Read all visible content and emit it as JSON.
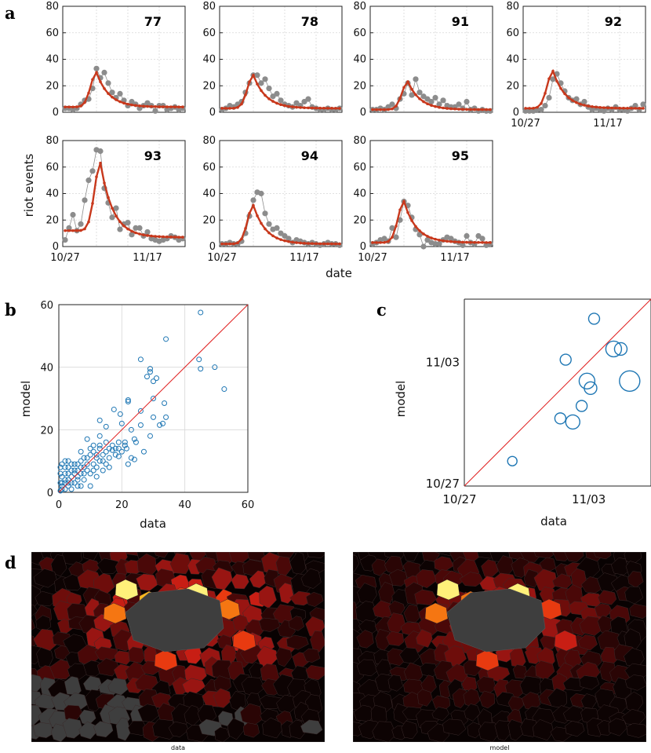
{
  "colors": {
    "model": "#c8381c",
    "data_point": "#8c8c8c",
    "scatter": "#1f77b4",
    "identity": "#e02020",
    "grid": "#d8d8d8",
    "masked": "#3e3e3e"
  },
  "chart_data": [
    {
      "panel": "a",
      "type": "line",
      "ylabel": "riot events",
      "xlabel": "date",
      "ylim": [
        0,
        80
      ],
      "yticks": [
        0,
        20,
        40,
        60,
        80
      ],
      "xtick_labels": [
        "10/27",
        "11/17"
      ],
      "x_unit": "day index from 10/27 (0..30)",
      "grid": true,
      "subplots": [
        {
          "label": "77",
          "peak_day": 8,
          "peak": 30,
          "base": 4,
          "tail": 4,
          "data": [
            3,
            3,
            2,
            3,
            6,
            9,
            10,
            18,
            33,
            26,
            30,
            22,
            15,
            11,
            14,
            9,
            5,
            8,
            6,
            3,
            5,
            7,
            5,
            1,
            5,
            5,
            2,
            3,
            4,
            2,
            3
          ]
        },
        {
          "label": "78",
          "peak_day": 8,
          "peak": 28,
          "base": 3,
          "tail": 3,
          "data": [
            2,
            3,
            5,
            4,
            6,
            8,
            15,
            22,
            28,
            28,
            22,
            25,
            18,
            12,
            14,
            9,
            6,
            5,
            4,
            7,
            5,
            8,
            10,
            4,
            3,
            2,
            2,
            3,
            2,
            2,
            3
          ]
        },
        {
          "label": "91",
          "peak_day": 9,
          "peak": 23,
          "base": 2,
          "tail": 2,
          "data": [
            2,
            2,
            3,
            2,
            4,
            6,
            3,
            10,
            14,
            22,
            13,
            25,
            15,
            12,
            10,
            8,
            11,
            6,
            9,
            5,
            4,
            4,
            6,
            3,
            8,
            2,
            3,
            1,
            2,
            1,
            1
          ]
        },
        {
          "label": "92",
          "peak_day": 7,
          "peak": 31,
          "base": 3,
          "tail": 3,
          "data": [
            1,
            1,
            1,
            2,
            2,
            5,
            11,
            25,
            29,
            22,
            16,
            11,
            9,
            10,
            6,
            8,
            4,
            2,
            3,
            2,
            1,
            3,
            2,
            4,
            2,
            2,
            1,
            3,
            5,
            2,
            6
          ]
        },
        {
          "label": "93",
          "peak_day": 9,
          "peak": 63,
          "base": 12,
          "tail": 7,
          "data": [
            5,
            14,
            24,
            12,
            17,
            35,
            50,
            57,
            73,
            72,
            44,
            33,
            22,
            29,
            13,
            17,
            18,
            9,
            14,
            14,
            8,
            11,
            6,
            5,
            4,
            5,
            6,
            8,
            7,
            5,
            6
          ]
        },
        {
          "label": "94",
          "peak_day": 8,
          "peak": 31,
          "base": 2,
          "tail": 2,
          "data": [
            2,
            2,
            3,
            2,
            2,
            4,
            10,
            23,
            35,
            41,
            40,
            25,
            17,
            13,
            14,
            10,
            8,
            6,
            3,
            5,
            4,
            3,
            2,
            3,
            2,
            1,
            2,
            3,
            2,
            2,
            1
          ]
        },
        {
          "label": "95",
          "peak_day": 8,
          "peak": 34,
          "base": 3,
          "tail": 3,
          "data": [
            2,
            3,
            5,
            6,
            4,
            14,
            7,
            20,
            34,
            31,
            22,
            13,
            9,
            0,
            5,
            3,
            2,
            2,
            5,
            7,
            6,
            4,
            3,
            1,
            8,
            3,
            2,
            8,
            6,
            1,
            2
          ]
        }
      ]
    },
    {
      "panel": "b",
      "type": "scatter",
      "xlabel": "data",
      "ylabel": "model",
      "xlim": [
        0,
        60
      ],
      "ylim": [
        0,
        60
      ],
      "xticks": [
        0,
        20,
        40,
        60
      ],
      "yticks": [
        0,
        20,
        40,
        60
      ],
      "reference_line": "y = x",
      "points": [
        [
          45,
          57.5
        ],
        [
          34,
          49
        ],
        [
          26,
          42.5
        ],
        [
          29,
          39.5
        ],
        [
          29,
          38.5
        ],
        [
          28,
          37
        ],
        [
          31,
          36.5
        ],
        [
          30,
          35.5
        ],
        [
          44.5,
          42.5
        ],
        [
          49.5,
          40
        ],
        [
          45,
          39.5
        ],
        [
          52.5,
          33
        ],
        [
          30,
          30
        ],
        [
          22,
          29.5
        ],
        [
          22,
          29
        ],
        [
          33.5,
          28.5
        ],
        [
          19.5,
          25
        ],
        [
          17.5,
          26.5
        ],
        [
          26,
          26
        ],
        [
          30,
          24
        ],
        [
          34,
          24
        ],
        [
          33,
          22
        ],
        [
          32,
          21.5
        ],
        [
          26,
          21.5
        ],
        [
          13,
          23
        ],
        [
          15,
          21
        ],
        [
          20,
          22
        ],
        [
          23,
          20
        ],
        [
          29,
          18
        ],
        [
          13,
          18
        ],
        [
          9,
          17
        ],
        [
          21,
          16
        ],
        [
          24,
          17
        ],
        [
          24.5,
          16
        ],
        [
          21.5,
          14
        ],
        [
          15,
          13
        ],
        [
          18,
          12
        ],
        [
          23,
          11
        ],
        [
          22,
          9
        ],
        [
          24,
          10.5
        ],
        [
          27,
          13
        ],
        [
          12,
          12
        ],
        [
          14,
          10
        ],
        [
          10,
          14
        ],
        [
          8,
          11
        ],
        [
          16,
          8
        ],
        [
          11,
          7
        ],
        [
          9,
          9
        ],
        [
          7,
          13
        ],
        [
          19,
          11.5
        ],
        [
          17,
          13.5
        ],
        [
          13,
          15
        ],
        [
          11,
          15
        ],
        [
          12,
          5
        ],
        [
          10,
          2
        ],
        [
          6,
          9
        ],
        [
          5,
          3
        ],
        [
          4,
          7
        ],
        [
          3,
          4
        ],
        [
          2,
          6
        ],
        [
          1,
          2
        ],
        [
          2,
          1
        ],
        [
          3,
          8
        ],
        [
          1,
          9
        ],
        [
          6,
          5
        ],
        [
          5,
          9
        ],
        [
          8,
          4
        ],
        [
          7,
          6
        ],
        [
          10,
          6
        ],
        [
          4,
          1
        ],
        [
          0.5,
          3
        ],
        [
          1,
          5
        ],
        [
          2,
          3
        ],
        [
          3,
          2
        ],
        [
          4,
          5
        ],
        [
          5,
          6
        ],
        [
          6,
          7
        ],
        [
          7,
          8
        ],
        [
          8,
          8
        ],
        [
          9,
          7
        ],
        [
          3,
          6
        ],
        [
          2,
          4
        ],
        [
          1,
          1
        ],
        [
          0.5,
          0.5
        ],
        [
          4,
          3
        ],
        [
          6,
          4
        ],
        [
          7,
          2
        ],
        [
          2,
          8
        ],
        [
          0.5,
          6
        ],
        [
          9,
          11
        ],
        [
          11,
          9
        ],
        [
          12,
          8
        ],
        [
          14,
          7
        ],
        [
          13,
          10
        ],
        [
          15,
          9
        ],
        [
          16,
          11
        ],
        [
          18,
          14
        ],
        [
          20,
          13
        ],
        [
          10,
          12
        ],
        [
          7,
          10
        ],
        [
          5,
          7
        ],
        [
          3,
          3
        ],
        [
          1,
          3
        ],
        [
          6,
          2
        ],
        [
          8,
          6
        ],
        [
          4,
          9
        ],
        [
          2,
          10
        ],
        [
          0.5,
          8
        ],
        [
          3,
          10
        ],
        [
          12,
          11
        ],
        [
          14,
          12
        ],
        [
          16,
          14
        ],
        [
          17,
          15
        ],
        [
          19,
          14
        ],
        [
          21,
          15
        ],
        [
          19,
          16
        ],
        [
          15,
          16
        ],
        [
          13,
          14
        ],
        [
          11,
          13
        ]
      ]
    },
    {
      "panel": "c",
      "type": "scatter",
      "xlabel": "data",
      "ylabel": "model",
      "xtick_labels": [
        "10/27",
        "11/03"
      ],
      "ytick_labels": [
        "10/27",
        "11/03"
      ],
      "x_unit": "days after 10/27",
      "lim": [
        0,
        10.5
      ],
      "reference_line": "y = x",
      "marker_size": "proportional to number of events",
      "points": [
        [
          2.7,
          1.4,
          6
        ],
        [
          8.8,
          7.7,
          8
        ],
        [
          8.4,
          7.7,
          10
        ],
        [
          7.3,
          9.4,
          7
        ],
        [
          6.9,
          5.9,
          10
        ],
        [
          7.1,
          5.5,
          8
        ],
        [
          6.6,
          4.5,
          7
        ],
        [
          5.7,
          7.1,
          7
        ],
        [
          6.1,
          3.6,
          9
        ],
        [
          5.4,
          3.8,
          7
        ],
        [
          9.3,
          5.9,
          13
        ]
      ]
    },
    {
      "panel": "d",
      "type": "heatmap",
      "titles": [
        "data",
        "model"
      ],
      "colormap": "hot",
      "masked_color": "#3e3e3e"
    }
  ],
  "panel_labels": [
    "a",
    "b",
    "c",
    "d"
  ]
}
